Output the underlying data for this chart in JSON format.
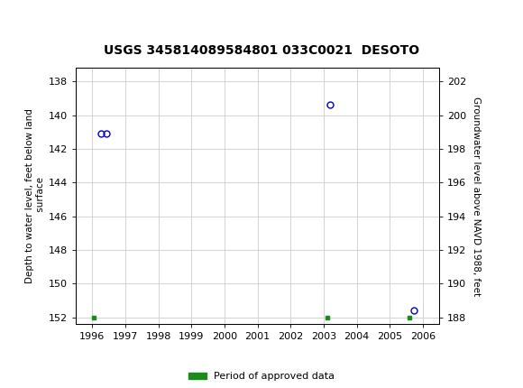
{
  "title": "USGS 345814089584801 033C0021  DESOTO",
  "ylabel_left": "Depth to water level, feet below land\n surface",
  "ylabel_right": "Groundwater level above NAVD 1988, feet",
  "scatter_points": [
    {
      "x": 1996.25,
      "y_left": 141.1
    },
    {
      "x": 1996.42,
      "y_left": 141.1
    },
    {
      "x": 2003.2,
      "y_left": 139.4
    },
    {
      "x": 2005.72,
      "y_left": 151.6
    }
  ],
  "green_markers": [
    {
      "x": 1996.05,
      "y_left": 152.0
    },
    {
      "x": 2003.1,
      "y_left": 152.0
    },
    {
      "x": 2005.6,
      "y_left": 152.0
    }
  ],
  "xlim": [
    1995.5,
    2006.5
  ],
  "ylim_left": [
    152.4,
    137.2
  ],
  "ylim_right": [
    187.6,
    202.8
  ],
  "xticks": [
    1996,
    1997,
    1998,
    1999,
    2000,
    2001,
    2002,
    2003,
    2004,
    2005,
    2006
  ],
  "yticks_left": [
    138,
    140,
    142,
    144,
    146,
    148,
    150,
    152
  ],
  "yticks_right": [
    202,
    200,
    198,
    196,
    194,
    192,
    190,
    188
  ],
  "scatter_color": "#0000cc",
  "green_color": "#1a8c1a",
  "marker_size": 5,
  "marker_linewidth": 1.0,
  "grid_color": "#cccccc",
  "header_bg": "#1a7a3c",
  "header_text_color": "#ffffff",
  "bg_color": "#ffffff",
  "font_color": "#000000",
  "legend_label": "Period of approved data",
  "title_fontsize": 10,
  "axis_fontsize": 7.5,
  "tick_fontsize": 8
}
